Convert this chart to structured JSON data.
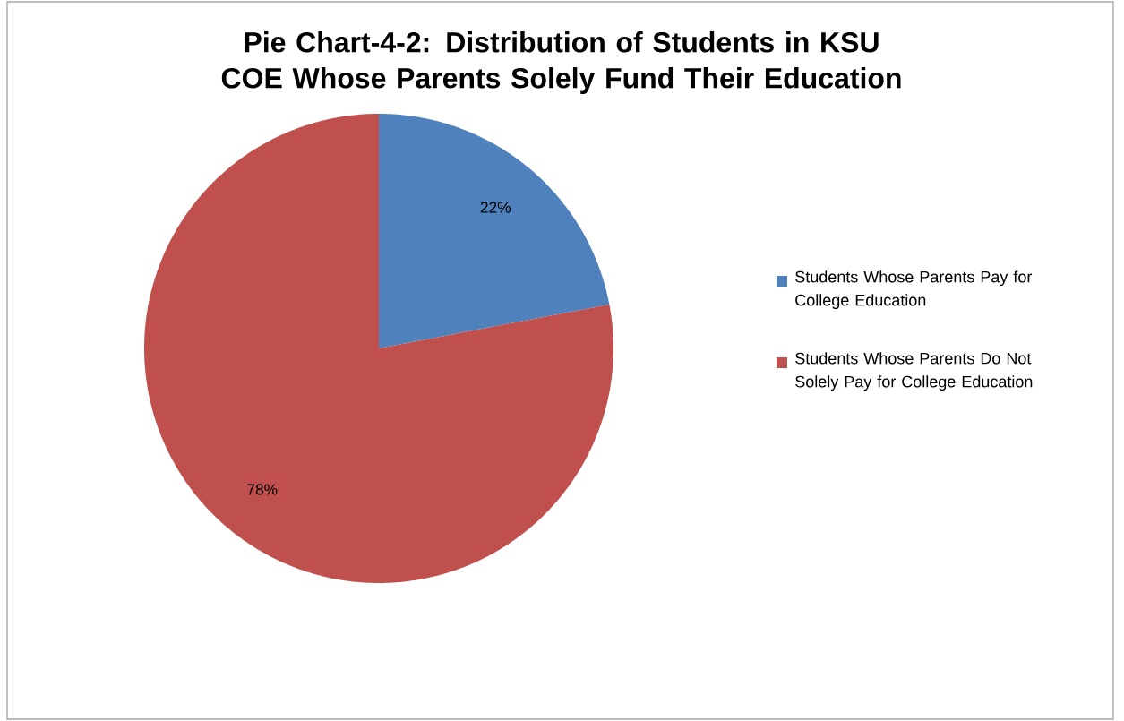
{
  "chart_data": {
    "type": "pie",
    "title": "Pie Chart-4-2: Distribution of Students in KSU COE Whose Parents Solely Fund Their Education",
    "categories": [
      "Students Whose Parents Pay for College Education",
      "Students Whose Parents Do Not Solely Pay for College Education"
    ],
    "values": [
      22,
      78
    ],
    "colors": [
      "#4f81bd",
      "#c0504d"
    ],
    "value_labels": [
      "22%",
      "78%"
    ],
    "legend": "right"
  }
}
